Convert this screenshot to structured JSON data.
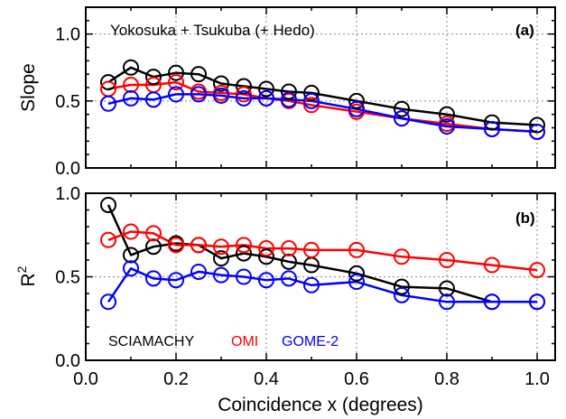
{
  "chart_data": [
    {
      "type": "line",
      "panel_label": "(a)",
      "title": "Yokosuka + Tsukuba (+ Hedo)",
      "ylabel": "Slope",
      "xlabel": "",
      "xlim": [
        0.0,
        1.04
      ],
      "ylim": [
        0.0,
        1.2
      ],
      "yticks": [
        "0.0",
        "0.5",
        "1.0"
      ],
      "ytick_values": [
        0.0,
        0.5,
        1.0
      ],
      "grid": true,
      "x": [
        0.05,
        0.1,
        0.15,
        0.2,
        0.25,
        0.3,
        0.35,
        0.4,
        0.45,
        0.5,
        0.6,
        0.7,
        0.8,
        0.9,
        1.0
      ],
      "series": [
        {
          "name": "SCIAMACHY",
          "color": "#000000",
          "values": [
            0.64,
            0.75,
            0.68,
            0.71,
            0.7,
            0.63,
            0.61,
            0.59,
            0.57,
            0.56,
            0.5,
            0.44,
            0.4,
            0.34,
            0.32
          ]
        },
        {
          "name": "OMI",
          "color": "#ff0000",
          "values": [
            0.59,
            0.62,
            0.62,
            0.64,
            0.57,
            0.56,
            0.55,
            0.52,
            0.5,
            0.47,
            0.42,
            0.37,
            0.33,
            0.29,
            0.27
          ]
        },
        {
          "name": "GOME-2",
          "color": "#0000ff",
          "values": [
            0.48,
            0.52,
            0.51,
            0.55,
            0.55,
            0.54,
            0.52,
            0.52,
            0.51,
            0.5,
            0.44,
            0.37,
            0.31,
            0.29,
            0.27
          ]
        }
      ]
    },
    {
      "type": "line",
      "panel_label": "(b)",
      "title": "",
      "ylabel": "R",
      "ylabel_sup": "2",
      "xlabel": "Coincidence x (degrees)",
      "xlim": [
        0.0,
        1.04
      ],
      "ylim": [
        0.0,
        1.0
      ],
      "xticks": [
        "0.0",
        "0.2",
        "0.4",
        "0.6",
        "0.8",
        "1.0"
      ],
      "xtick_values": [
        0.0,
        0.2,
        0.4,
        0.6,
        0.8,
        1.0
      ],
      "yticks": [
        "0.0",
        "0.5",
        "1.0"
      ],
      "ytick_values": [
        0.0,
        0.5,
        1.0
      ],
      "grid": true,
      "legend_placement": "bottom-left",
      "x": [
        0.05,
        0.1,
        0.15,
        0.2,
        0.25,
        0.3,
        0.35,
        0.4,
        0.45,
        0.5,
        0.6,
        0.7,
        0.8,
        0.9,
        1.0
      ],
      "series": [
        {
          "name": "SCIAMACHY",
          "color": "#000000",
          "values": [
            0.93,
            0.63,
            0.68,
            0.7,
            0.69,
            0.61,
            0.64,
            0.62,
            0.59,
            0.57,
            0.52,
            0.44,
            0.43,
            0.35,
            0.35
          ]
        },
        {
          "name": "OMI",
          "color": "#ff0000",
          "values": [
            0.72,
            0.77,
            0.76,
            0.69,
            0.69,
            0.68,
            0.69,
            0.67,
            0.67,
            0.66,
            0.66,
            0.62,
            0.6,
            0.57,
            0.54
          ]
        },
        {
          "name": "GOME-2",
          "color": "#0000ff",
          "values": [
            0.35,
            0.55,
            0.49,
            0.48,
            0.53,
            0.51,
            0.5,
            0.48,
            0.49,
            0.45,
            0.47,
            0.39,
            0.35,
            0.35,
            0.35
          ]
        }
      ]
    }
  ]
}
